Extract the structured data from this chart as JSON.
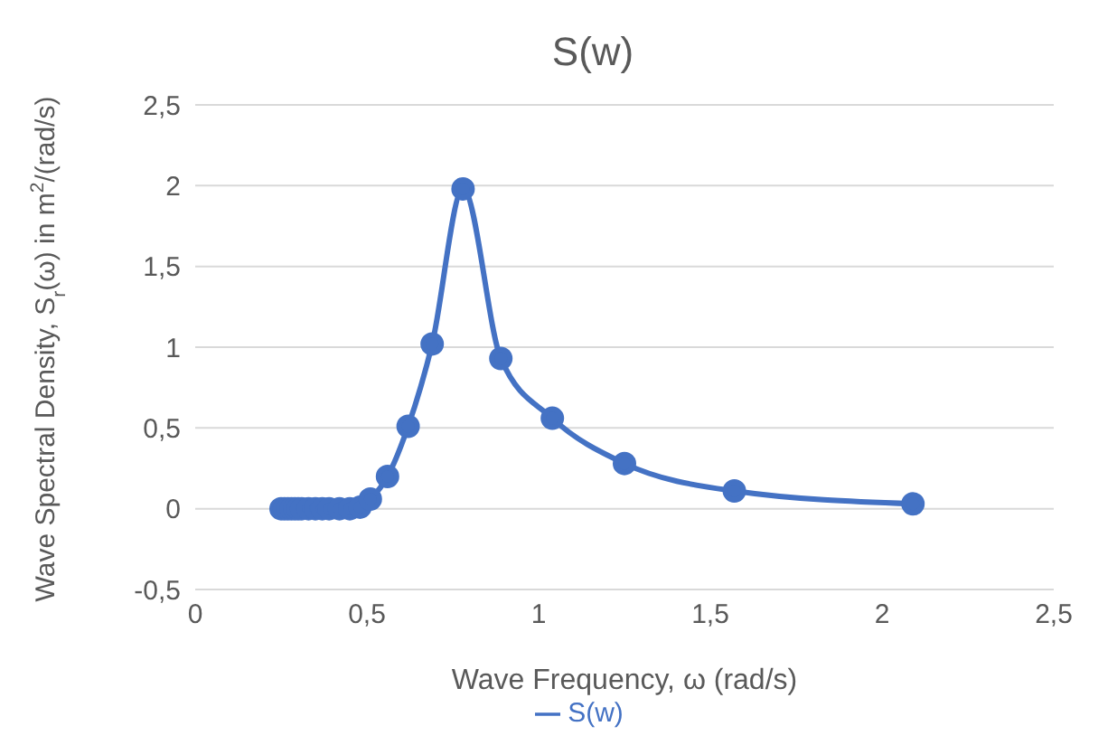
{
  "chart_data": {
    "type": "line",
    "title": "S(w)",
    "xlabel": "Wave Frequency, ω (rad/s)",
    "ylabel": "Wave Spectral Density,  S$_{r}$(ω) in m$^{2}$/(rad/s)",
    "x": [
      0.25,
      0.26,
      0.27,
      0.28,
      0.29,
      0.3,
      0.31,
      0.33,
      0.35,
      0.37,
      0.39,
      0.42,
      0.45,
      0.48,
      0.51,
      0.56,
      0.62,
      0.69,
      0.78,
      0.89,
      1.04,
      1.25,
      1.57,
      2.09
    ],
    "series": [
      {
        "name": "S(w)",
        "color": "#4472c4",
        "values": [
          0,
          0,
          0,
          0,
          0,
          0,
          0,
          0,
          0,
          0,
          0,
          0,
          0,
          0.01,
          0.06,
          0.2,
          0.51,
          1.02,
          1.98,
          0.93,
          0.56,
          0.28,
          0.11,
          0.03
        ]
      }
    ],
    "xlim": [
      0,
      2.5
    ],
    "xticks": [
      0,
      {
        "value": 0.5,
        "label": "0,5"
      },
      1,
      {
        "value": 1.5,
        "label": "1,5"
      },
      2,
      {
        "value": 2.5,
        "label": "2,5"
      }
    ],
    "ylim": [
      -0.5,
      2.5
    ],
    "yticks": [
      {
        "value": -0.5,
        "label": "-0,5"
      },
      0,
      {
        "value": 0.5,
        "label": "0,5"
      },
      1,
      {
        "value": 1.5,
        "label": "1,5"
      },
      2,
      {
        "value": 2.5,
        "label": "2,5"
      }
    ],
    "grid": "y",
    "legend": "bottom",
    "marker": "circle",
    "line_style": "solid"
  }
}
